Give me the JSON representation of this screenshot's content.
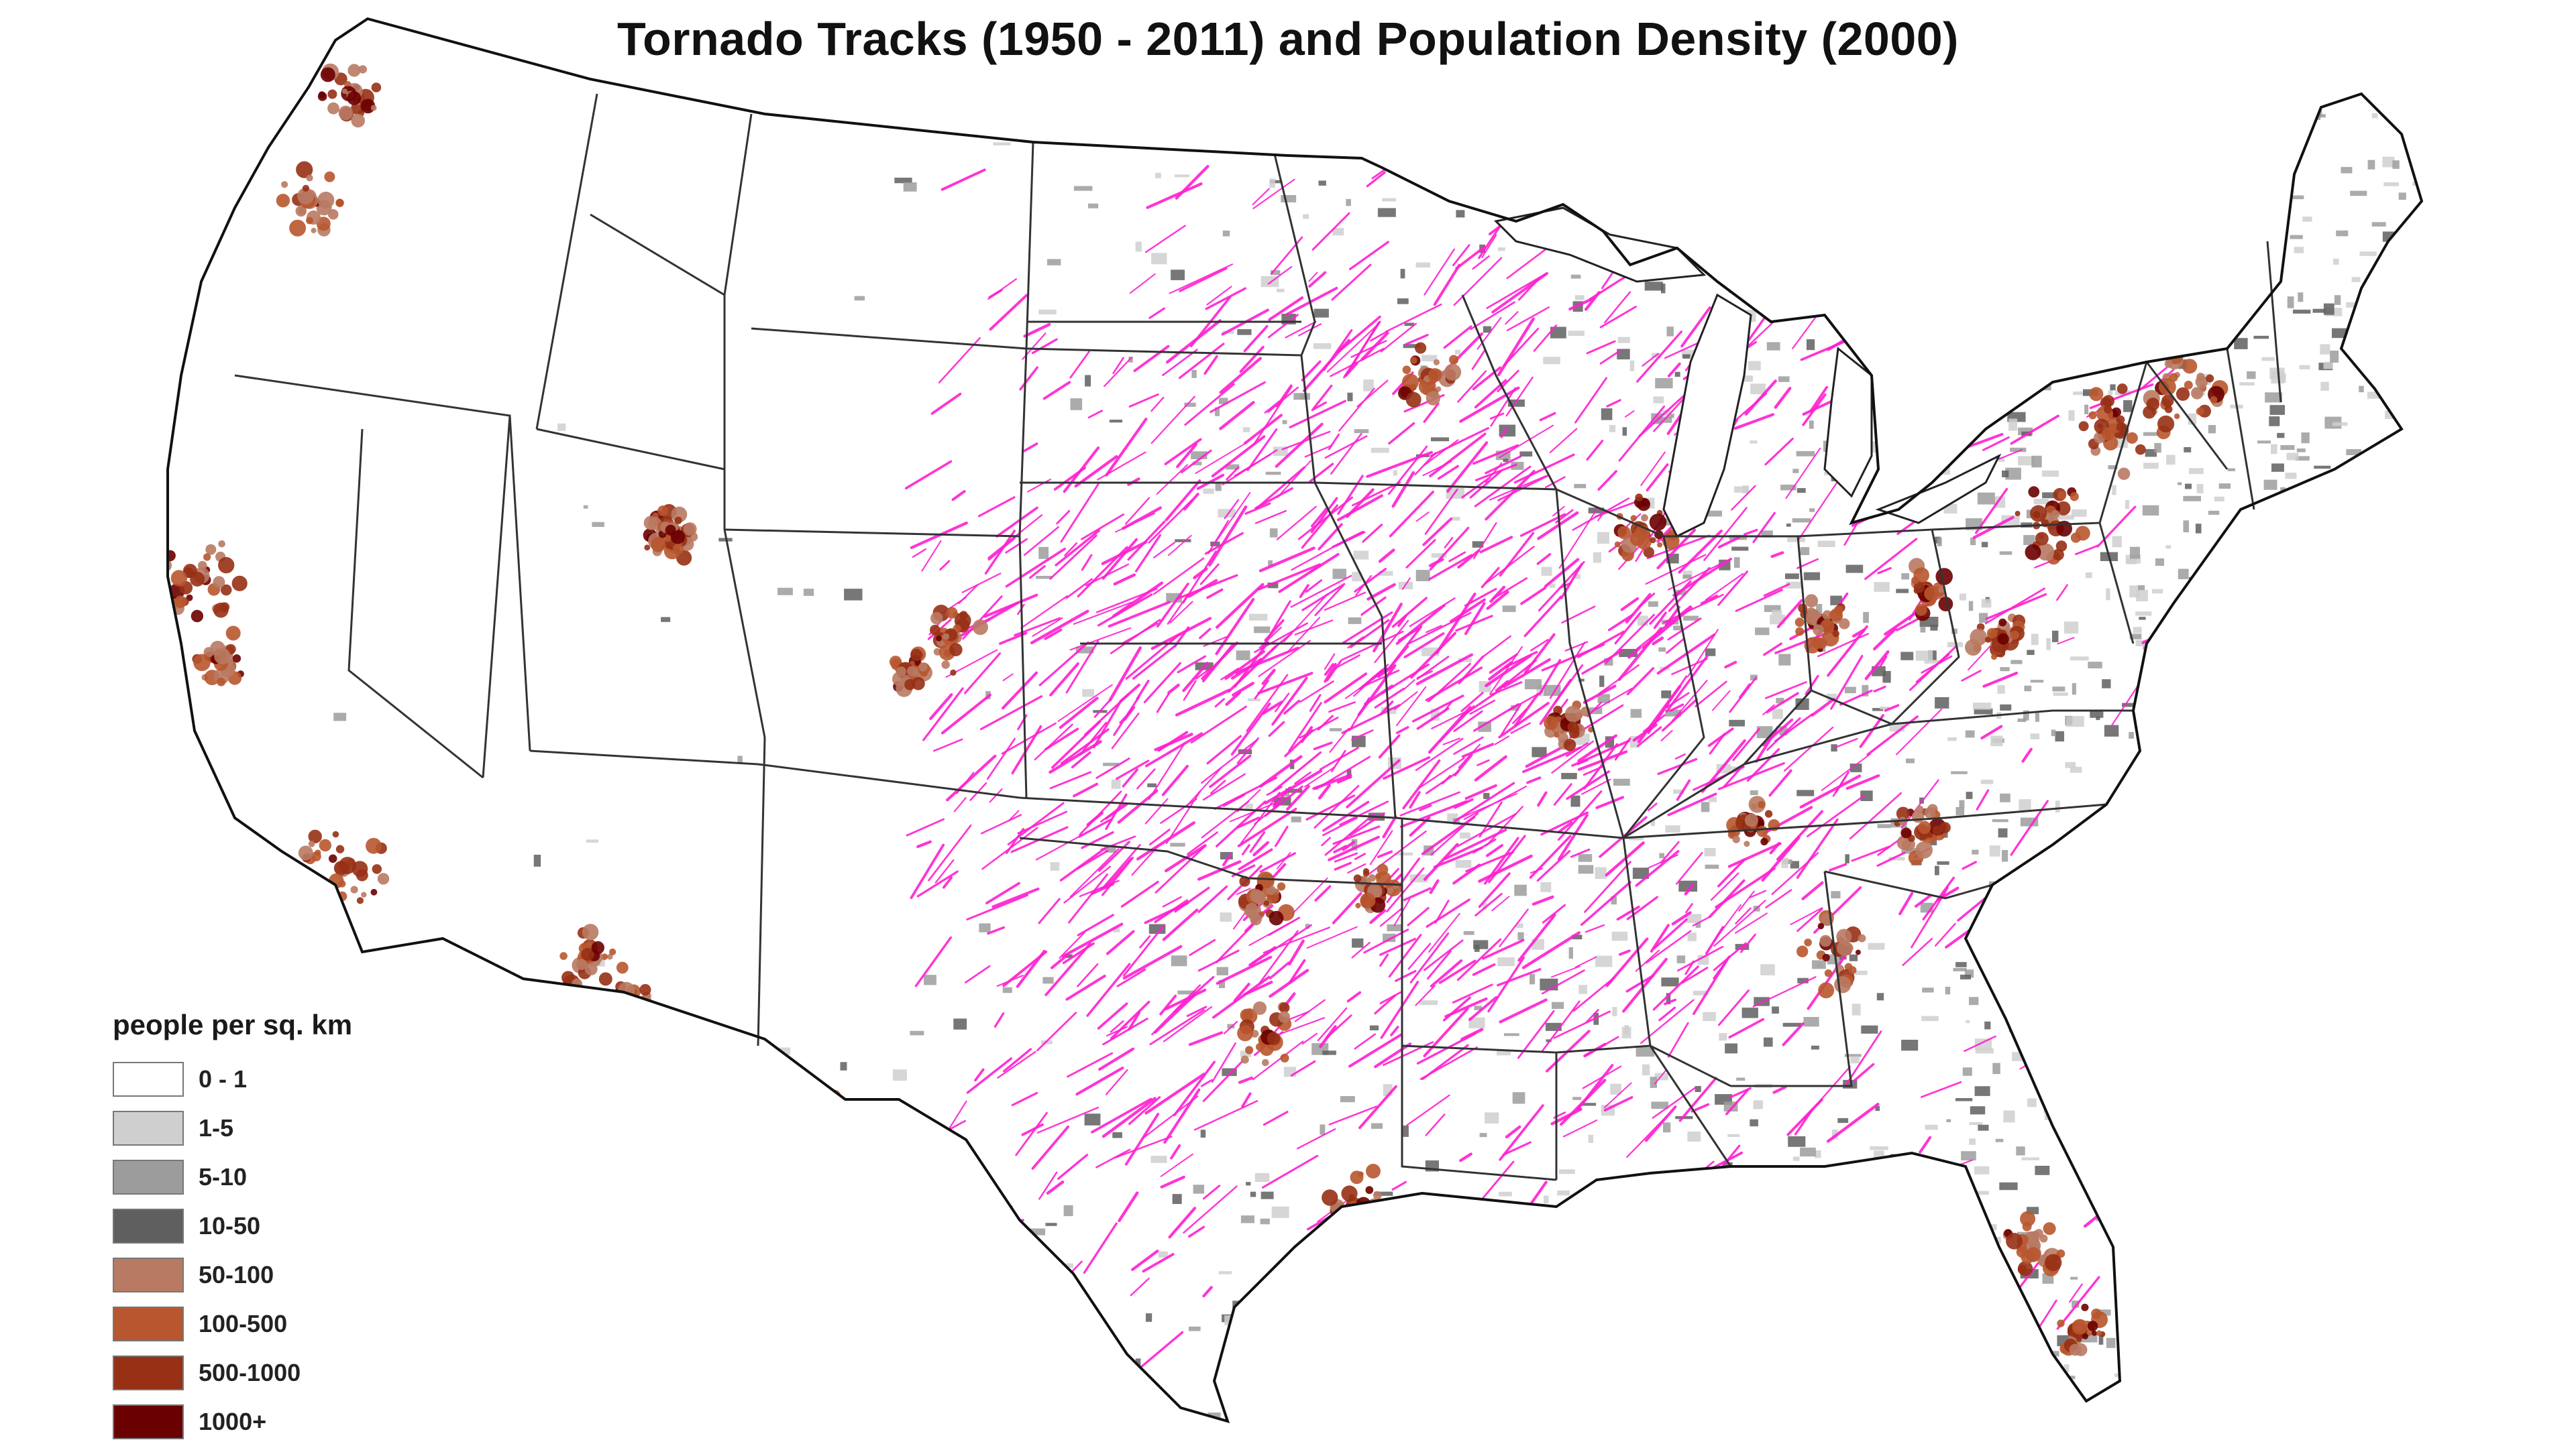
{
  "title": "Tornado Tracks (1950 - 2011) and Population Density (2000)",
  "legend": {
    "title": "people per sq. km",
    "items": [
      {
        "label": "0 - 1",
        "color": "#ffffff"
      },
      {
        "label": "1-5",
        "color": "#cfcfcf"
      },
      {
        "label": "5-10",
        "color": "#9c9c9c"
      },
      {
        "label": "10-50",
        "color": "#5f5f5f"
      },
      {
        "label": "50-100",
        "color": "#b87a63"
      },
      {
        "label": "100-500",
        "color": "#b8562f"
      },
      {
        "label": "500-1000",
        "color": "#973015"
      },
      {
        "label": "1000+",
        "color": "#6b0000"
      }
    ]
  },
  "colors": {
    "tornado_track": "#ff1fd0",
    "state_border": "#333333",
    "coastline": "#111111"
  }
}
